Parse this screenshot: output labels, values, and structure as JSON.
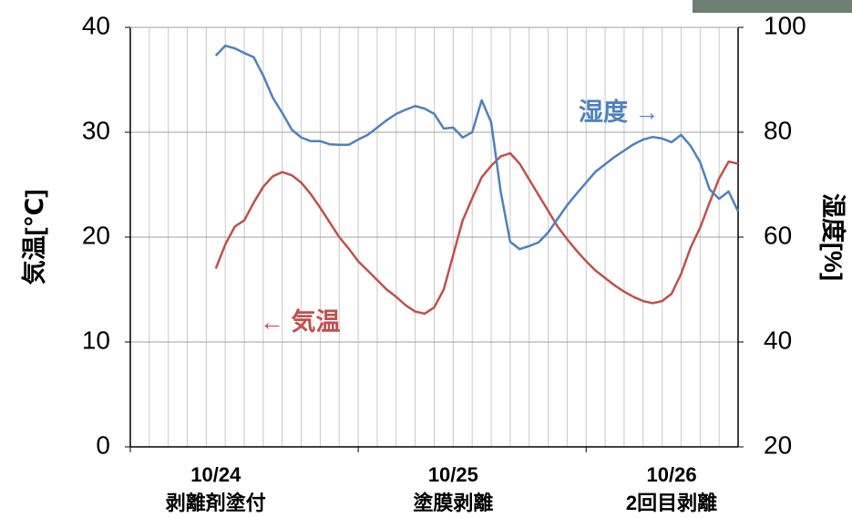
{
  "chart_data": {
    "type": "line",
    "x": [
      9,
      10,
      11,
      12,
      13,
      14,
      15,
      16,
      17,
      18,
      19,
      20,
      21,
      22,
      23,
      24,
      25,
      26,
      27,
      28,
      29,
      30,
      31,
      32,
      33,
      34,
      35,
      36,
      37,
      38,
      39,
      40,
      41,
      42,
      43,
      44,
      45,
      46,
      47,
      48,
      49,
      50,
      51,
      52,
      53,
      54,
      55,
      56,
      57,
      58,
      59,
      60,
      61,
      62,
      63,
      64
    ],
    "series": [
      {
        "color": "#c0504d",
        "axis": "y",
        "values": [
          17.0,
          19.3,
          21.0,
          21.6,
          23.3,
          24.8,
          25.8,
          26.2,
          25.9,
          25.2,
          24.1,
          22.8,
          21.4,
          20.0,
          18.9,
          17.7,
          16.8,
          15.9,
          15.0,
          14.3,
          13.5,
          12.9,
          12.7,
          13.3,
          15.0,
          18.3,
          21.6,
          23.7,
          25.7,
          26.8,
          27.7,
          28.0,
          27.0,
          25.5,
          24.0,
          22.5,
          21.0,
          19.8,
          18.7,
          17.7,
          16.8,
          16.1,
          15.4,
          14.8,
          14.3,
          13.9,
          13.7,
          13.9,
          14.6,
          16.5,
          19.0,
          20.9,
          23.3,
          25.6,
          27.2,
          27.0
        ]
      },
      {
        "color": "#4f81bd",
        "axis": "y2",
        "values": [
          94.6,
          96.5,
          96.0,
          95.1,
          94.3,
          90.8,
          86.6,
          83.7,
          80.5,
          79.0,
          78.3,
          78.3,
          77.7,
          77.6,
          77.6,
          78.6,
          79.5,
          80.9,
          82.3,
          83.5,
          84.3,
          85.0,
          84.5,
          83.5,
          80.7,
          80.9,
          79.0,
          80.0,
          86.1,
          81.9,
          68.7,
          59.1,
          57.7,
          58.3,
          59.0,
          60.9,
          63.5,
          66.1,
          68.3,
          70.4,
          72.5,
          73.9,
          75.3,
          76.5,
          77.7,
          78.6,
          79.1,
          78.8,
          78.1,
          79.5,
          77.4,
          74.3,
          69.1,
          67.3,
          68.7,
          64.9
        ]
      }
    ],
    "xlim": [
      0,
      64
    ],
    "xticks": [
      0,
      24,
      48
    ],
    "xgrid_step": 2,
    "ylim": [
      0,
      40
    ],
    "yticks": [
      0,
      10,
      20,
      30,
      40
    ],
    "y2lim": [
      20,
      100
    ],
    "y2ticks": [
      20,
      40,
      60,
      80,
      100
    ],
    "ylabel": "気温[℃]",
    "y2label": "湿度[%]",
    "grid": true,
    "x_labels": [
      {
        "value": 9,
        "label": "10/24",
        "sublabel": "剥離剤塗付"
      },
      {
        "value": 34,
        "label": "10/25",
        "sublabel": "塗膜剥離"
      },
      {
        "value": 57,
        "label": "10/26",
        "sublabel": "2回目剥離"
      }
    ],
    "annotations": [
      "湿度 →",
      "← 気温"
    ]
  }
}
